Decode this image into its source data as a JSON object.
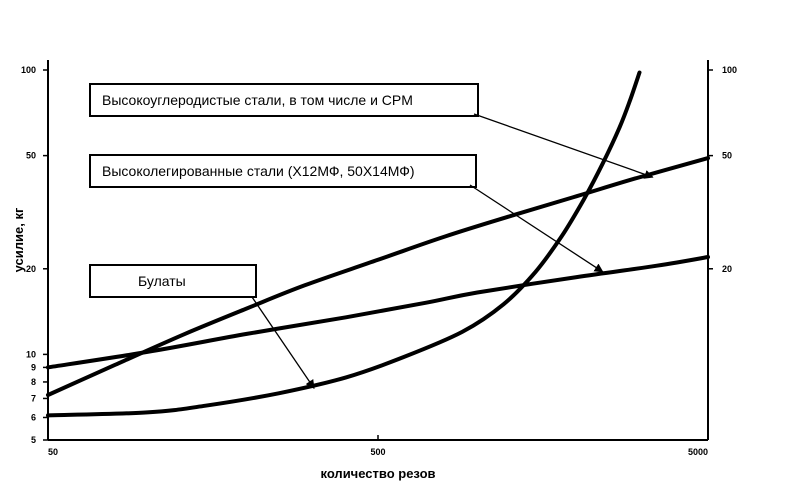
{
  "chart_data": {
    "type": "line",
    "title": "",
    "xlabel": "количество резов",
    "ylabel": "усилие, кг",
    "x_scale": "log",
    "y_scale": "log",
    "xlim": [
      50,
      5000
    ],
    "ylim": [
      5,
      100
    ],
    "x_ticks": [
      "50",
      "500",
      "5000"
    ],
    "y_ticks_left": [
      "100",
      "50",
      "20",
      "10",
      "9",
      "8",
      "7",
      "6",
      "5"
    ],
    "y_ticks_right": [
      "100",
      "50",
      "20"
    ],
    "grid": false,
    "series": [
      {
        "name": "Высокоуглеродистые стали, в том числе и CPM",
        "x": [
          50,
          80,
          130,
          200,
          300,
          500,
          800,
          1300,
          2000,
          3000,
          5000
        ],
        "y": [
          7.2,
          9.2,
          11.8,
          14.5,
          17.5,
          21.5,
          26,
          31,
          36,
          41.5,
          49
        ]
      },
      {
        "name": "Высоколегированные стали (Х12МФ, 50Х14МФ)",
        "x": [
          50,
          100,
          200,
          400,
          700,
          1000,
          2000,
          3500,
          5000
        ],
        "y": [
          9,
          10.2,
          11.8,
          13.5,
          15.2,
          16.5,
          18.7,
          20.5,
          22
        ]
      },
      {
        "name": "Булаты",
        "x": [
          50,
          100,
          150,
          250,
          400,
          600,
          900,
          1200,
          1500,
          1800,
          2100,
          2400,
          2700,
          2900,
          3100
        ],
        "y": [
          6.1,
          6.25,
          6.6,
          7.3,
          8.3,
          9.8,
          12,
          15,
          19.5,
          26,
          35,
          47,
          63,
          78,
          98
        ]
      }
    ],
    "callouts": [
      {
        "text": "Высокоуглеродистые стали, в том числе и CPM",
        "target": {
          "x": 3400,
          "y": 42
        }
      },
      {
        "text": "Высоколегированные стали (Х12МФ, 50Х14МФ)",
        "target": {
          "x": 2400,
          "y": 19.5
        }
      },
      {
        "text": "Булаты",
        "target": {
          "x": 320,
          "y": 7.6
        }
      }
    ]
  }
}
